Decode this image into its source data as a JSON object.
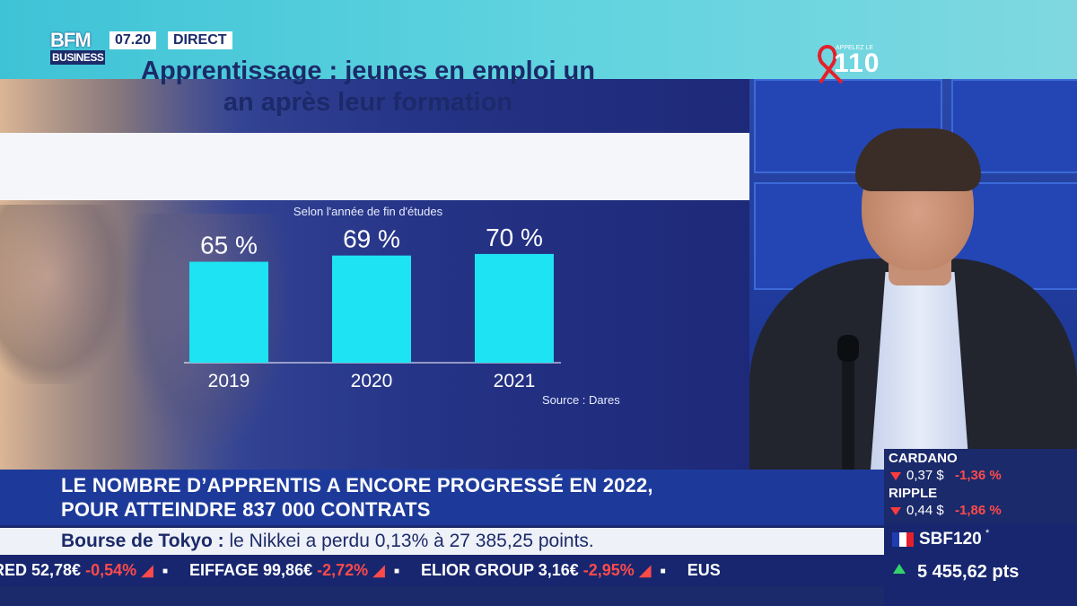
{
  "channel": {
    "logo_line1": "BFM",
    "logo_line2": "BUSINESS",
    "time": "07.20",
    "live": "DIRECT"
  },
  "promo": {
    "top_text": "APPELEZ LE",
    "number": "110"
  },
  "chart": {
    "title": "Apprentissage : jeunes en emploi un an après leur formation",
    "subtitle": "Selon l'année de fin d'études",
    "source": "Source : Dares",
    "bar_color": "#1ee3f2"
  },
  "chart_data": {
    "type": "bar",
    "title": "Apprentissage : jeunes en emploi un an après leur formation",
    "subtitle": "Selon l'année de fin d'études",
    "categories": [
      "2019",
      "2020",
      "2021"
    ],
    "values": [
      65,
      69,
      70
    ],
    "value_labels": [
      "65 %",
      "69 %",
      "70 %"
    ],
    "unit": "%",
    "xlabel": "",
    "ylabel": "",
    "ylim": [
      0,
      100
    ],
    "grid": false,
    "legend": "none"
  },
  "headline": {
    "line1": "LE NOMBRE D’APPRENTIS A ENCORE PROGRESSÉ EN 2022,",
    "line2": "POUR ATTEINDRE 837 000 CONTRATS"
  },
  "news": {
    "label": "Bourse de Tokyo :",
    "text": " le Nikkei a perdu 0,13% à 27 385,25 points."
  },
  "ticker": [
    {
      "name": "RED",
      "value": "52,78€",
      "change": "-0,54%"
    },
    {
      "name": "EIFFAGE",
      "value": "99,86€",
      "change": "-2,72%"
    },
    {
      "name": "ELIOR GROUP",
      "value": "3,16€",
      "change": "-2,95%"
    },
    {
      "name": "EUS",
      "value": "",
      "change": ""
    }
  ],
  "crypto": [
    {
      "name": "CARDANO",
      "value": "0,37 $",
      "change": "-1,36 %"
    },
    {
      "name": "RIPPLE",
      "value": "0,44 $",
      "change": "-1,86 %"
    }
  ],
  "index": {
    "name": "SBF120",
    "star": "*",
    "value": "5 455,62 pts",
    "up_color": "#34d26a"
  }
}
